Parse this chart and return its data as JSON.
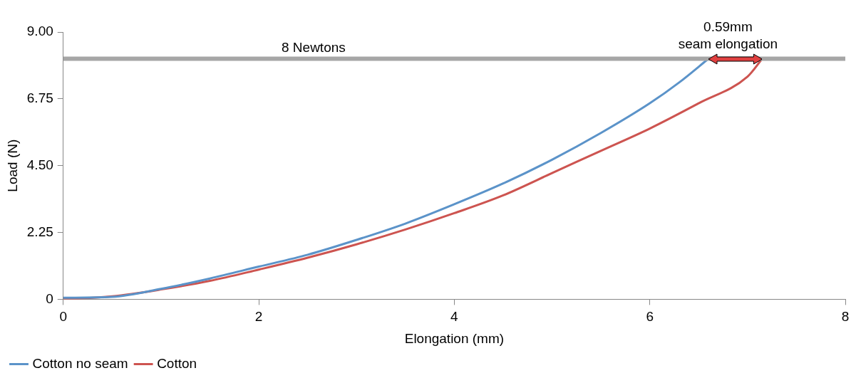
{
  "chart_data": {
    "type": "line",
    "xlabel": "Elongation (mm)",
    "ylabel": "Load (N)",
    "xlim": [
      0,
      8
    ],
    "xticks": [
      0,
      2,
      4,
      6,
      8
    ],
    "ylim": [
      0,
      9
    ],
    "yticks": [
      0,
      {
        "value": 2.25,
        "label": "2.25"
      },
      {
        "value": 4.5,
        "label": "4.50"
      },
      {
        "value": 6.75,
        "label": "6.75"
      },
      {
        "value": 9,
        "label": "9.00"
      }
    ],
    "series": [
      {
        "name": "Cotton no seam",
        "color": "#5b93c9",
        "x": [
          0,
          0.5,
          1,
          1.5,
          2,
          2.5,
          3,
          3.5,
          4,
          4.5,
          5,
          5.5,
          6,
          6.3,
          6.6
        ],
        "values": [
          0.05,
          0.08,
          0.35,
          0.7,
          1.1,
          1.5,
          2.0,
          2.55,
          3.2,
          3.9,
          4.7,
          5.6,
          6.6,
          7.3,
          8.1
        ]
      },
      {
        "name": "Cotton",
        "color": "#cd5450",
        "x": [
          0,
          0.5,
          1,
          1.5,
          2,
          2.5,
          3,
          3.5,
          4,
          4.5,
          5,
          5.5,
          6,
          6.5,
          7,
          7.15
        ],
        "values": [
          0,
          0.1,
          0.33,
          0.62,
          1.0,
          1.4,
          1.85,
          2.35,
          2.9,
          3.5,
          4.25,
          5.0,
          5.75,
          6.6,
          7.5,
          8.1
        ]
      }
    ],
    "ref_lines": [
      {
        "axis": "y",
        "value": 8.1,
        "label": "8 Newtons",
        "color": "#a6a6a6"
      }
    ],
    "annotations": [
      {
        "text": "0.59mm\nseam elongation",
        "x": 6.8,
        "y": 8.1
      }
    ],
    "grid": false,
    "legend": "bottom left",
    "marker": "none",
    "line_style": "solid"
  }
}
